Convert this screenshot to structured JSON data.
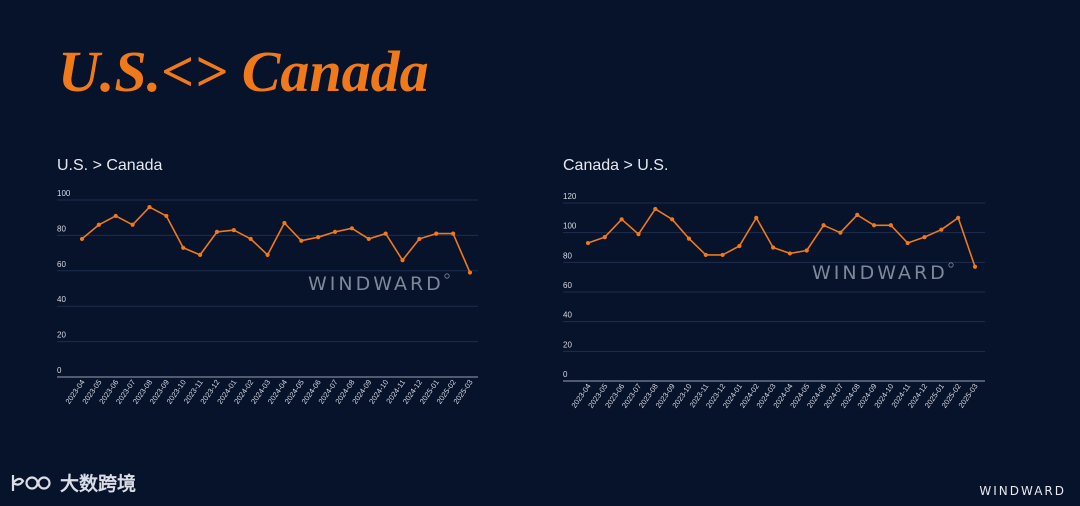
{
  "slide": {
    "title": "U.S.<> Canada",
    "watermark": "WINDWARD",
    "footer_brand": "WINDWARD",
    "bottom_logo": "大数跨境"
  },
  "colors": {
    "background": "#07122b",
    "title": "#f07a1a",
    "line": "#f07a1a",
    "grid": "#1f2d4f",
    "axis": "#9aa3b5",
    "text": "#e6e9ef"
  },
  "chart_data": [
    {
      "type": "line",
      "title": "U.S. > Canada",
      "xlabel": "",
      "ylabel": "",
      "ylim": [
        0,
        100
      ],
      "yticks": [
        0,
        20,
        40,
        60,
        80,
        100
      ],
      "grid": true,
      "categories": [
        "2023-04",
        "2023-05",
        "2023-06",
        "2023-07",
        "2023-08",
        "2023-09",
        "2023-10",
        "2023-11",
        "2023-12",
        "2024-01",
        "2024-02",
        "2024-03",
        "2024-04",
        "2024-05",
        "2024-06",
        "2024-07",
        "2024-08",
        "2024-09",
        "2024-10",
        "2024-11",
        "2024-12",
        "2025-01",
        "2025-02",
        "2025-03"
      ],
      "values": [
        78,
        86,
        91,
        86,
        96,
        91,
        73,
        69,
        82,
        83,
        78,
        69,
        87,
        77,
        79,
        82,
        84,
        78,
        81,
        66,
        78,
        81,
        81,
        59
      ]
    },
    {
      "type": "line",
      "title": "Canada > U.S.",
      "xlabel": "",
      "ylabel": "",
      "ylim": [
        0,
        120
      ],
      "yticks": [
        0,
        20,
        40,
        60,
        80,
        100,
        120
      ],
      "grid": true,
      "categories": [
        "2023-04",
        "2023-05",
        "2023-06",
        "2023-07",
        "2023-08",
        "2023-09",
        "2023-10",
        "2023-11",
        "2023-12",
        "2024-01",
        "2024-02",
        "2024-03",
        "2024-04",
        "2024-05",
        "2024-06",
        "2024-07",
        "2024-08",
        "2024-09",
        "2024-10",
        "2024-11",
        "2024-12",
        "2025-01",
        "2025-02",
        "2025-03"
      ],
      "values": [
        93,
        97,
        109,
        99,
        116,
        109,
        96,
        85,
        85,
        91,
        110,
        90,
        86,
        88,
        105,
        100,
        112,
        105,
        105,
        93,
        97,
        102,
        110,
        77
      ]
    }
  ]
}
